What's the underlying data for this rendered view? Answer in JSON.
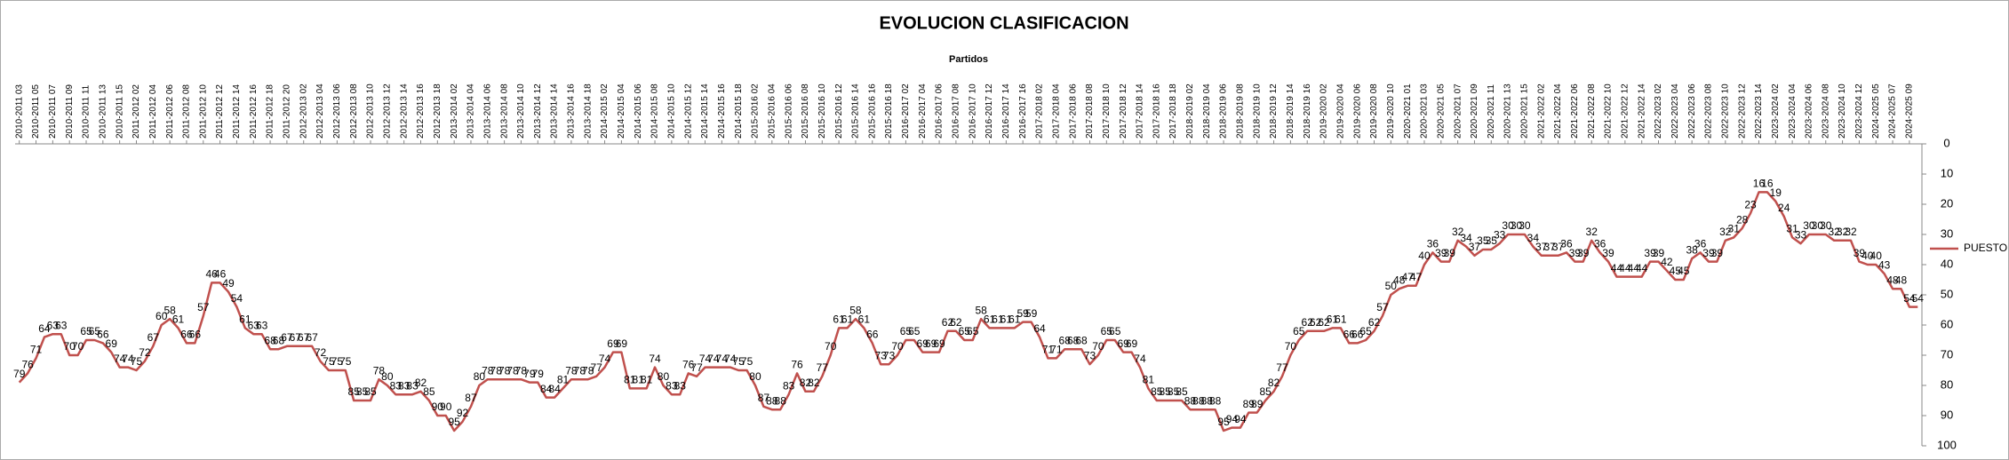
{
  "chart_data": {
    "type": "line",
    "title": "EVOLUCION CLASIFICACION",
    "x_label": "Partidos",
    "categories": [
      "2010-2011 03",
      null,
      "2010-2011 05",
      null,
      "2010-2011 07",
      null,
      "2010-2011 09",
      null,
      "2010-2011 11",
      null,
      "2010-2011 13",
      null,
      "2010-2011 15",
      null,
      "2011-2012 02",
      null,
      "2011-2012 04",
      null,
      "2011-2012 06",
      null,
      "2011-2012 08",
      null,
      "2011-2012 10",
      null,
      "2011-2012 12",
      null,
      "2011-2012 14",
      null,
      "2011-2012 16",
      null,
      "2011-2012 18",
      null,
      "2011-2012 20",
      null,
      "2012-2013 02",
      null,
      "2012-2013 04",
      null,
      "2012-2013 06",
      null,
      "2012-2013 08",
      null,
      "2012-2013 10",
      null,
      "2012-2013 12",
      null,
      "2012-2013 14",
      null,
      "2012-2013 16",
      null,
      "2012-2013 18",
      null,
      "2013-2014 02",
      null,
      "2013-2014 04",
      null,
      "2013-2014 06",
      null,
      "2013-2014 08",
      null,
      "2013-2014 10",
      null,
      "2013-2014 12",
      null,
      "2013-2014 14",
      null,
      "2013-2014 16",
      null,
      "2013-2014 18",
      null,
      "2014-2015 02",
      null,
      "2014-2015 04",
      null,
      "2014-2015 06",
      null,
      "2014-2015 08",
      null,
      "2014-2015 10",
      null,
      "2014-2015 12",
      null,
      "2014-2015 14",
      null,
      "2014-2015 16",
      null,
      "2014-2015 18",
      null,
      "2015-2016 02",
      null,
      "2015-2016 04",
      null,
      "2015-2016 06",
      null,
      "2015-2016 08",
      null,
      "2015-2016 10",
      null,
      "2015-2016 12",
      null,
      "2015-2016 14",
      null,
      "2015-2016 16",
      null,
      "2015-2016 18",
      null,
      "2016-2017 02",
      null,
      "2016-2017 04",
      null,
      "2016-2017 06",
      null,
      "2016-2017 08",
      null,
      "2016-2017 10",
      null,
      "2016-2017 12",
      null,
      "2016-2017 14",
      null,
      "2016-2017 16",
      null,
      "2017-2018 02",
      null,
      "2017-2018 04",
      null,
      "2017-2018 06",
      null,
      "2017-2018 08",
      null,
      "2017-2018 10",
      null,
      "2017-2018 12",
      null,
      "2017-2018 14",
      null,
      "2017-2018 16",
      null,
      "2017-2018 18",
      null,
      "2018-2019 02",
      null,
      "2018-2019 04",
      null,
      "2018-2019 06",
      null,
      "2018-2019 08",
      null,
      "2018-2019 10",
      null,
      "2018-2019 12",
      null,
      "2018-2019 14",
      null,
      "2018-2019 16",
      null,
      "2019-2020 02",
      null,
      "2019-2020 04",
      null,
      "2019-2020 06",
      null,
      "2019-2020 08",
      null,
      "2019-2020 10",
      null,
      "2020-2021 01",
      null,
      "2020-2021 03",
      null,
      "2020-2021 05",
      null,
      "2020-2021 07",
      null,
      "2020-2021 09",
      null,
      "2020-2021 11",
      null,
      "2020-2021 13",
      null,
      "2020-2021 15",
      null,
      "2021-2022 02",
      null,
      "2021-2022 04",
      null,
      "2021-2022 06",
      null,
      "2021-2022 08",
      null,
      "2021-2022 10",
      null,
      "2021-2022 12",
      null,
      "2021-2022 14",
      null,
      "2022-2023 02",
      null,
      "2022-2023 04",
      null,
      "2022-2023 06",
      null,
      "2022-2023 08",
      null,
      "2022-2023 10",
      null,
      "2022-2023 12",
      null,
      "2022-2023 14",
      null,
      "2023-2024 02",
      null,
      "2023-2024 04",
      null,
      "2023-2024 06",
      null,
      "2023-2024 08",
      null,
      "2023-2024 10",
      null,
      "2023-2024 12",
      null,
      "2024-2025 05",
      null,
      "2024-2025 07",
      null,
      "2024-2025 09",
      null
    ],
    "series": [
      {
        "name": "PUESTO",
        "color": "#c0504d",
        "values": [
          79,
          76,
          71,
          64,
          63,
          63,
          70,
          70,
          65,
          65,
          66,
          69,
          74,
          74,
          75,
          72,
          67,
          60,
          58,
          61,
          66,
          66,
          57,
          46,
          46,
          49,
          54,
          61,
          63,
          63,
          68,
          68,
          67,
          67,
          67,
          67,
          72,
          75,
          75,
          75,
          85,
          85,
          85,
          78,
          80,
          83,
          83,
          83,
          82,
          85,
          90,
          90,
          95,
          92,
          87,
          80,
          78,
          78,
          78,
          78,
          78,
          79,
          79,
          84,
          84,
          81,
          78,
          78,
          78,
          77,
          74,
          69,
          69,
          81,
          81,
          81,
          74,
          80,
          83,
          83,
          76,
          77,
          74,
          74,
          74,
          74,
          75,
          75,
          80,
          87,
          88,
          88,
          83,
          76,
          82,
          82,
          77,
          70,
          61,
          61,
          58,
          61,
          66,
          73,
          73,
          70,
          65,
          65,
          69,
          69,
          69,
          62,
          62,
          65,
          65,
          58,
          61,
          61,
          61,
          61,
          59,
          59,
          64,
          71,
          71,
          68,
          68,
          68,
          73,
          70,
          65,
          65,
          69,
          69,
          74,
          81,
          85,
          85,
          85,
          85,
          88,
          88,
          88,
          88,
          95,
          94,
          94,
          89,
          89,
          85,
          82,
          77,
          70,
          65,
          62,
          62,
          62,
          61,
          61,
          66,
          66,
          65,
          62,
          57,
          50,
          48,
          47,
          47,
          40,
          36,
          39,
          39,
          32,
          34,
          37,
          35,
          35,
          33,
          30,
          30,
          30,
          34,
          37,
          37,
          37,
          36,
          39,
          39,
          32,
          36,
          39,
          44,
          44,
          44,
          44,
          39,
          39,
          42,
          45,
          45,
          38,
          36,
          39,
          39,
          32,
          31,
          28,
          23,
          16,
          16,
          19,
          24,
          31,
          33,
          30,
          30,
          30,
          32,
          32,
          32,
          39,
          40,
          40,
          43,
          48,
          48,
          54,
          54
        ]
      }
    ],
    "ylim": [
      0,
      100
    ],
    "yticks": [
      0,
      10,
      20,
      30,
      40,
      50,
      60,
      70,
      80,
      90,
      100
    ],
    "y_inverted": true,
    "y_axis_side": "right",
    "data_labels": true,
    "legend": "right",
    "grid": false
  }
}
